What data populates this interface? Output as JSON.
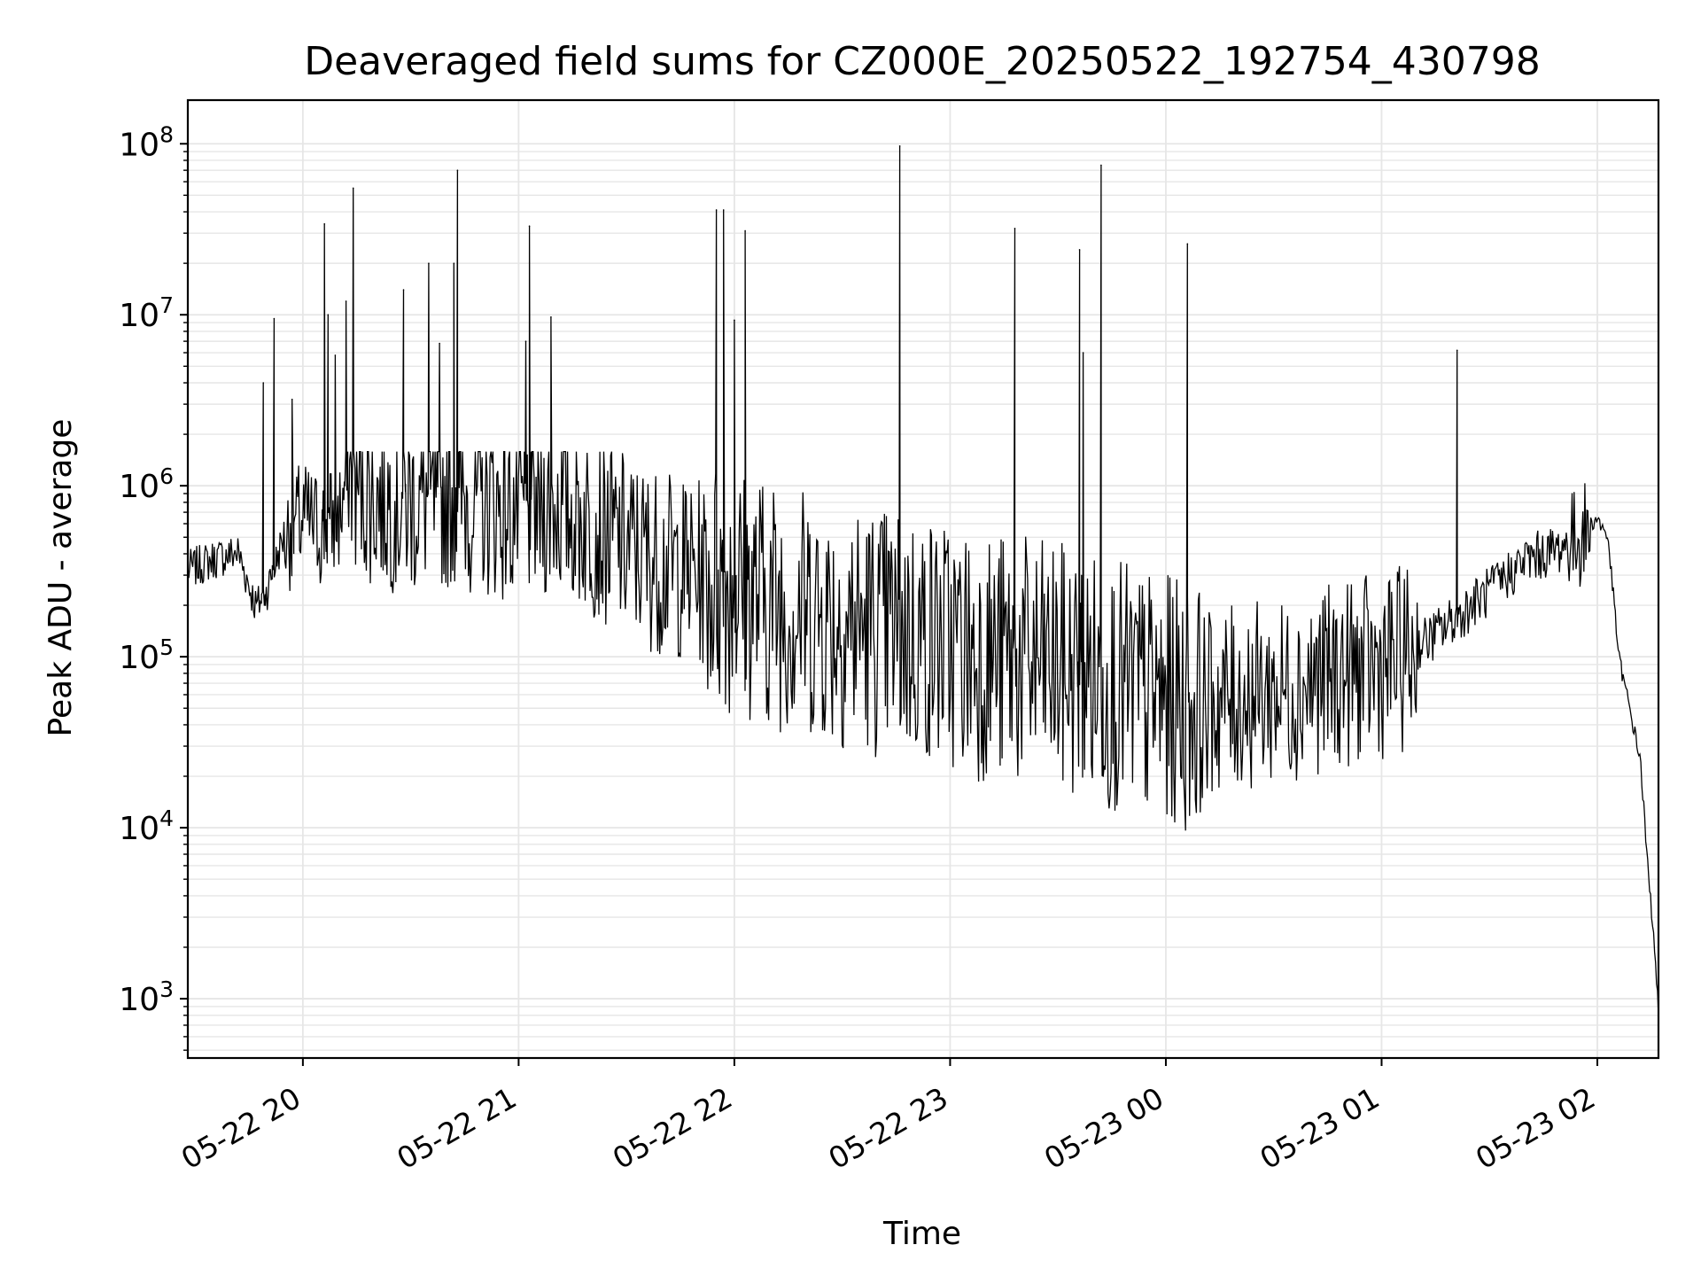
{
  "chart_data": {
    "type": "line",
    "title": "Deaveraged field sums for CZ000E_20250522_192754_430798",
    "xlabel": "Time",
    "ylabel": "Peak ADU - average",
    "yscale": "log",
    "grid": true,
    "x_range": [
      "2025-05-22 19:28:00",
      "2025-05-23 02:17:00"
    ],
    "ylim": [
      450,
      180000000
    ],
    "x_ticks": [
      {
        "t": "2025-05-22 20:00",
        "label": "05-22 20"
      },
      {
        "t": "2025-05-22 21:00",
        "label": "05-22 21"
      },
      {
        "t": "2025-05-22 22:00",
        "label": "05-22 22"
      },
      {
        "t": "2025-05-22 23:00",
        "label": "05-22 23"
      },
      {
        "t": "2025-05-23 00:00",
        "label": "05-23 00"
      },
      {
        "t": "2025-05-23 01:00",
        "label": "05-23 01"
      },
      {
        "t": "2025-05-23 02:00",
        "label": "05-23 02"
      }
    ],
    "y_ticks": [
      {
        "v": 1000,
        "base": "10",
        "exp": "3"
      },
      {
        "v": 10000,
        "base": "10",
        "exp": "4"
      },
      {
        "v": 100000,
        "base": "10",
        "exp": "5"
      },
      {
        "v": 1000000,
        "base": "10",
        "exp": "6"
      },
      {
        "v": 10000000,
        "base": "10",
        "exp": "7"
      },
      {
        "v": 100000000,
        "base": "10",
        "exp": "8"
      }
    ],
    "line_color": "#000000",
    "grid_color": "#e6e6e6",
    "series": [
      {
        "x": [
          "2025-05-22 19:28",
          "2025-05-22 19:35",
          "2025-05-22 19:42",
          "2025-05-22 19:47",
          "2025-05-22 19:50",
          "2025-05-22 19:55",
          "2025-05-22 20:00",
          "2025-05-22 20:05",
          "2025-05-22 20:10",
          "2025-05-22 20:13",
          "2025-05-22 20:20",
          "2025-05-22 20:30",
          "2025-05-22 20:40",
          "2025-05-22 20:50",
          "2025-05-22 21:00",
          "2025-05-22 21:10",
          "2025-05-22 21:20",
          "2025-05-22 21:30",
          "2025-05-22 21:40",
          "2025-05-22 21:50",
          "2025-05-22 22:00",
          "2025-05-22 22:10",
          "2025-05-22 22:20",
          "2025-05-22 22:30",
          "2025-05-22 22:40",
          "2025-05-22 22:50",
          "2025-05-22 23:00",
          "2025-05-22 23:10",
          "2025-05-22 23:20",
          "2025-05-22 23:30",
          "2025-05-22 23:40",
          "2025-05-22 23:50",
          "2025-05-23 00:00",
          "2025-05-23 00:10",
          "2025-05-23 00:20",
          "2025-05-23 00:30",
          "2025-05-23 00:40",
          "2025-05-23 00:50",
          "2025-05-23 01:00",
          "2025-05-23 01:10",
          "2025-05-23 01:15",
          "2025-05-23 01:20",
          "2025-05-23 01:30",
          "2025-05-23 01:40",
          "2025-05-23 01:50",
          "2025-05-23 02:00",
          "2025-05-23 02:03",
          "2025-05-23 02:06",
          "2025-05-23 02:09",
          "2025-05-23 02:12",
          "2025-05-23 02:14",
          "2025-05-23 02:16",
          "2025-05-23 02:17"
        ],
        "y": [
          330000,
          380000,
          420000,
          200000,
          250000,
          550000,
          700000,
          600000,
          700000,
          1300000,
          1000000,
          900000,
          1000000,
          900000,
          800000,
          900000,
          700000,
          500000,
          400000,
          350000,
          300000,
          250000,
          220000,
          190000,
          170000,
          160000,
          140000,
          120000,
          110000,
          100000,
          90000,
          75000,
          65000,
          60000,
          65000,
          70000,
          80000,
          90000,
          100000,
          120000,
          140000,
          170000,
          250000,
          380000,
          450000,
          650000,
          500000,
          100000,
          50000,
          25000,
          6000,
          2000,
          800
        ]
      }
    ],
    "spikes": {
      "x": [
        "2025-05-22 19:49",
        "2025-05-22 19:52",
        "2025-05-22 19:57",
        "2025-05-22 20:06",
        "2025-05-22 20:07",
        "2025-05-22 20:09",
        "2025-05-22 20:12",
        "2025-05-22 20:14",
        "2025-05-22 20:28",
        "2025-05-22 20:35",
        "2025-05-22 20:38",
        "2025-05-22 20:42",
        "2025-05-22 20:43",
        "2025-05-22 21:02",
        "2025-05-22 21:03",
        "2025-05-22 21:09",
        "2025-05-22 21:55",
        "2025-05-22 21:57",
        "2025-05-22 22:00",
        "2025-05-22 22:03",
        "2025-05-22 22:46",
        "2025-05-22 23:18",
        "2025-05-22 23:36",
        "2025-05-22 23:37",
        "2025-05-22 23:42",
        "2025-05-23 00:06",
        "2025-05-23 01:21"
      ],
      "y": [
        4000000,
        9500000,
        3200000,
        34000000,
        10000000,
        5800000,
        12000000,
        55000000,
        14000000,
        20000000,
        6800000,
        20000000,
        70000000,
        7000000,
        33000000,
        9700000,
        41000000,
        41000000,
        9300000,
        31000000,
        97000000,
        32000000,
        24000000,
        6000000,
        75000000,
        26000000,
        6200000
      ]
    }
  }
}
